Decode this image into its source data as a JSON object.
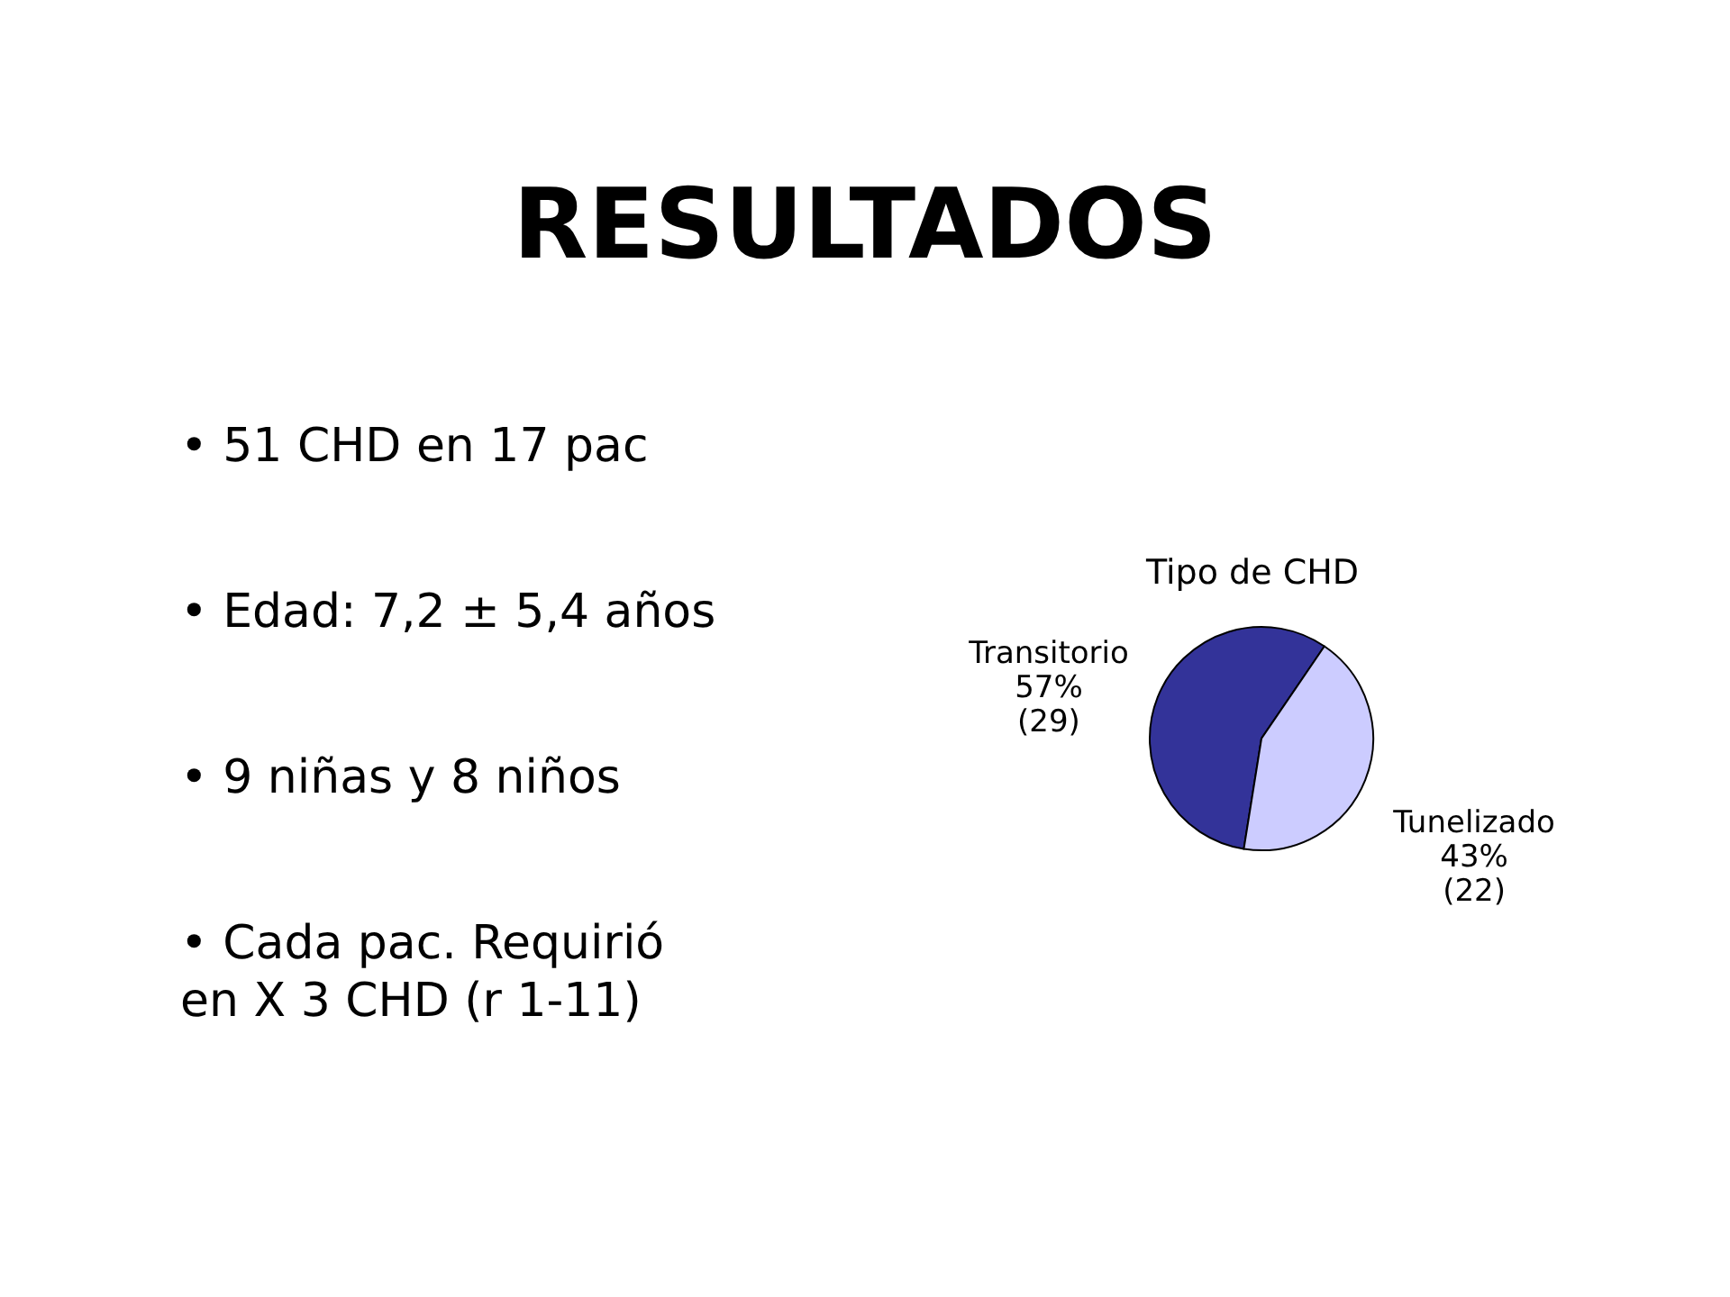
{
  "chart_data": {
    "type": "pie",
    "title": "RESULTADOS",
    "subtitle": "Tipo de CHD",
    "categories": [
      "Transitorio",
      "Tunelizado"
    ],
    "values": [
      57,
      43
    ],
    "value_labels": [
      "57%\n(29)",
      "43%\n(22)"
    ],
    "colors": [
      "#333399",
      "#ccccff"
    ],
    "annotations": [
      "• 51 CHD en 17 pac",
      "• Edad: 7,2 ± 5,4 años",
      "• 9 niñas y 8 niños",
      "• Cada pac. Requirió\n   en X 3 CHD (r 1-11)"
    ]
  }
}
